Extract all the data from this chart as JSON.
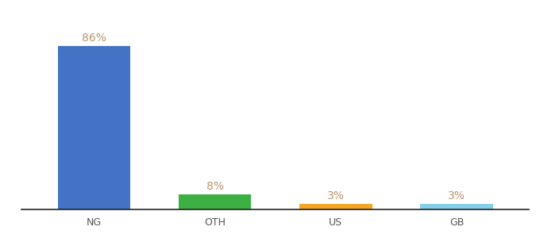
{
  "categories": [
    "NG",
    "OTH",
    "US",
    "GB"
  ],
  "values": [
    86,
    8,
    3,
    3
  ],
  "bar_colors": [
    "#4472c4",
    "#3cb043",
    "#f5a623",
    "#87ceeb"
  ],
  "label_color": "#b8956a",
  "background_color": "#ffffff",
  "ylim": [
    0,
    100
  ],
  "bar_width": 0.6,
  "value_labels": [
    "86%",
    "8%",
    "3%",
    "3%"
  ],
  "tick_color": "#555555",
  "tick_fontsize": 9,
  "label_fontsize": 10
}
